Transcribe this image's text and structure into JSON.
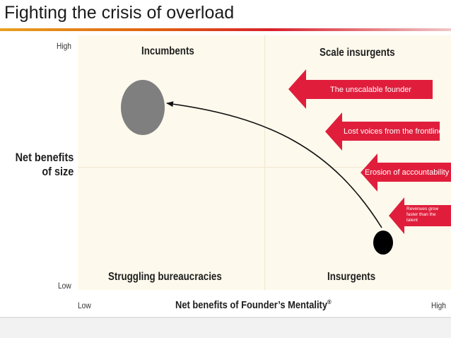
{
  "slide": {
    "title": "Fighting the crisis of overload"
  },
  "y_axis": {
    "title_line1": "Net benefits",
    "title_line2": "of size",
    "high": "High",
    "low": "Low"
  },
  "x_axis": {
    "title": "Net benefits of Founder’s Mentality",
    "title_mark": "®",
    "low": "Low",
    "high": "High"
  },
  "quadrants": {
    "top_left": "Incumbents",
    "top_right": "Scale insurgents",
    "bottom_left": "Struggling bureaucracies",
    "bottom_right": "Insurgents"
  },
  "arrows": [
    {
      "text": "The unscalable founder"
    },
    {
      "text": "Lost voices from the frontline"
    },
    {
      "text": "Erosion of accountability"
    },
    {
      "text_lines": [
        "Revenues grow",
        "faster than the",
        "talent"
      ]
    }
  ],
  "colors": {
    "arrow_red": "#e01e3c",
    "plot_bg": "#fdf9ec",
    "incumbent_oval": "#7f7f7f",
    "insurgent_dot": "#000000"
  }
}
